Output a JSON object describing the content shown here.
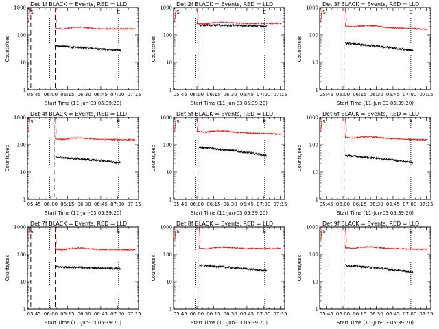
{
  "figure": {
    "y_tick_labels": [
      "1",
      "10",
      "100",
      "1000"
    ],
    "x_tick_labels": [
      "05:45",
      "06:00",
      "06:15",
      "06:30",
      "06:45",
      "07:00",
      "07:15"
    ],
    "markers": {
      "start": "S",
      "end": "E"
    },
    "colors": {
      "events": "#000000",
      "lld": "#ff0000",
      "axis": "#000000"
    }
  },
  "chart_data": [
    {
      "type": "line",
      "title": "Det 1f BLACK = Events, RED = LLD",
      "xlabel": "Start Time (11-Jun-03 05:39:20)",
      "ylabel": "Counts/sec",
      "yscale": "log",
      "ylim": [
        1,
        1000
      ],
      "xlim": [
        "05:39",
        "07:19"
      ],
      "markers": {
        "S": "05:43",
        "E": "07:01"
      },
      "dashed_lines": [
        "05:42",
        "06:04"
      ],
      "dotted_lines": [
        "05:59",
        "07:01"
      ],
      "series": [
        {
          "name": "Events",
          "color": "black",
          "start": "06:04",
          "end": "07:03",
          "level_start": 40,
          "level_end": 27
        },
        {
          "name": "LLD",
          "color": "red",
          "start": "06:04",
          "end": "07:16",
          "level_start": 170,
          "level_end": 165
        }
      ]
    },
    {
      "type": "line",
      "title": "Det 2f BLACK = Events, RED = LLD",
      "xlabel": "Start Time (11-Jun-03 05:39:20)",
      "ylabel": "Counts/sec",
      "yscale": "log",
      "ylim": [
        1,
        1000
      ],
      "xlim": [
        "05:39",
        "07:19"
      ],
      "markers": {
        "S": "05:43",
        "E": "07:01"
      },
      "dashed_lines": [
        "05:43",
        "06:01"
      ],
      "dotted_lines": [
        "05:59",
        "07:01"
      ],
      "series": [
        {
          "name": "Events",
          "color": "black",
          "start": "06:02",
          "end": "07:03",
          "level_start": 230,
          "level_end": 210
        },
        {
          "name": "LLD",
          "color": "red",
          "start": "06:00",
          "end": "07:16",
          "level_start": 260,
          "level_end": 265
        }
      ]
    },
    {
      "type": "line",
      "title": "Det 3f BLACK = Events, RED = LLD",
      "xlabel": "Start Time (11-Jun-03 05:39:20)",
      "ylabel": "Counts/sec",
      "yscale": "log",
      "ylim": [
        1,
        1000
      ],
      "xlim": [
        "05:39",
        "07:19"
      ],
      "markers": {
        "S": "05:43",
        "E": "07:01"
      },
      "dashed_lines": [
        "05:43",
        "06:01"
      ],
      "dotted_lines": [
        "05:59",
        "07:01"
      ],
      "series": [
        {
          "name": "Events",
          "color": "black",
          "start": "06:02",
          "end": "07:03",
          "level_start": 50,
          "level_end": 27
        },
        {
          "name": "LLD",
          "color": "red",
          "start": "06:02",
          "end": "07:16",
          "level_start": 210,
          "level_end": 160
        }
      ]
    },
    {
      "type": "line",
      "title": "Det 4f BLACK = Events, RED = LLD",
      "xlabel": "Start Time (11-Jun-03 05:39:20)",
      "ylabel": "Counts/sec",
      "yscale": "log",
      "ylim": [
        1,
        1000
      ],
      "xlim": [
        "05:39",
        "07:19"
      ],
      "markers": {
        "S": "05:43",
        "E": "07:01"
      },
      "dashed_lines": [
        "05:43",
        "06:03"
      ],
      "dotted_lines": [
        "05:59",
        "07:01"
      ],
      "series": [
        {
          "name": "Events",
          "color": "black",
          "start": "06:04",
          "end": "07:03",
          "level_start": 35,
          "level_end": 22
        },
        {
          "name": "LLD",
          "color": "red",
          "start": "06:04",
          "end": "07:16",
          "level_start": 160,
          "level_end": 150
        }
      ]
    },
    {
      "type": "line",
      "title": "Det 5f BLACK = Events, RED = LLD",
      "xlabel": "Start Time (11-Jun-03 05:39:20)",
      "ylabel": "Counts/sec",
      "yscale": "log",
      "ylim": [
        1,
        1000
      ],
      "xlim": [
        "05:39",
        "07:19"
      ],
      "markers": {
        "S": "05:43",
        "E": "07:01"
      },
      "dashed_lines": [
        "05:43",
        "06:01"
      ],
      "dotted_lines": [
        "05:59",
        "07:01"
      ],
      "series": [
        {
          "name": "Events",
          "color": "black",
          "start": "06:02",
          "end": "07:03",
          "level_start": 80,
          "level_end": 40
        },
        {
          "name": "LLD",
          "color": "red",
          "start": "06:00",
          "end": "07:16",
          "level_start": 300,
          "level_end": 240
        }
      ]
    },
    {
      "type": "line",
      "title": "Det 6f BLACK = Events, RED = LLD",
      "xlabel": "Start Time (11-Jun-03 05:39:20)",
      "ylabel": "Counts/sec",
      "yscale": "log",
      "ylim": [
        1,
        1000
      ],
      "xlim": [
        "05:39",
        "07:19"
      ],
      "markers": {
        "S": "05:43",
        "E": "07:01"
      },
      "dashed_lines": [
        "05:43",
        "06:01"
      ],
      "dotted_lines": [
        "05:59",
        "07:01"
      ],
      "series": [
        {
          "name": "Events",
          "color": "black",
          "start": "06:02",
          "end": "07:03",
          "level_start": 40,
          "level_end": 22
        },
        {
          "name": "LLD",
          "color": "red",
          "start": "06:02",
          "end": "07:16",
          "level_start": 180,
          "level_end": 150
        }
      ]
    },
    {
      "type": "line",
      "title": "Det 7f BLACK = Events, RED = LLD",
      "xlabel": "Start Time (11-Jun-03 05:39:20)",
      "ylabel": "Counts/sec",
      "yscale": "log",
      "ylim": [
        1,
        1000
      ],
      "xlim": [
        "05:39",
        "07:19"
      ],
      "markers": {
        "S": "05:43",
        "E": "07:01"
      },
      "dashed_lines": [
        "05:42",
        "06:04"
      ],
      "dotted_lines": [
        "05:59",
        "07:01"
      ],
      "series": [
        {
          "name": "Events",
          "color": "black",
          "start": "06:04",
          "end": "07:03",
          "level_start": 35,
          "level_end": 30
        },
        {
          "name": "LLD",
          "color": "red",
          "start": "06:04",
          "end": "07:16",
          "level_start": 150,
          "level_end": 145
        }
      ]
    },
    {
      "type": "line",
      "title": "Det 8f BLACK = Events, RED = LLD",
      "xlabel": "Start Time (11-Jun-03 05:39:20)",
      "ylabel": "Counts/sec",
      "yscale": "log",
      "ylim": [
        1,
        1000
      ],
      "xlim": [
        "05:39",
        "07:19"
      ],
      "markers": {
        "S": "05:43",
        "E": "07:01"
      },
      "dashed_lines": [
        "05:43",
        "06:01"
      ],
      "dotted_lines": [
        "05:59",
        "07:01"
      ],
      "series": [
        {
          "name": "Events",
          "color": "black",
          "start": "06:02",
          "end": "07:03",
          "level_start": 40,
          "level_end": 25
        },
        {
          "name": "LLD",
          "color": "red",
          "start": "06:02",
          "end": "07:16",
          "level_start": 160,
          "level_end": 160
        }
      ]
    },
    {
      "type": "line",
      "title": "Det 9f BLACK = Events, RED = LLD",
      "xlabel": "Start Time (11-Jun-03 05:39:20)",
      "ylabel": "Counts/sec",
      "yscale": "log",
      "ylim": [
        1,
        1000
      ],
      "xlim": [
        "05:39",
        "07:19"
      ],
      "markers": {
        "S": "05:43",
        "E": "07:01"
      },
      "dashed_lines": [
        "05:43",
        "06:01"
      ],
      "dotted_lines": [
        "05:59",
        "07:01"
      ],
      "series": [
        {
          "name": "Events",
          "color": "black",
          "start": "06:02",
          "end": "07:03",
          "level_start": 40,
          "level_end": 22
        },
        {
          "name": "LLD",
          "color": "red",
          "start": "06:02",
          "end": "07:16",
          "level_start": 170,
          "level_end": 150
        }
      ]
    }
  ]
}
